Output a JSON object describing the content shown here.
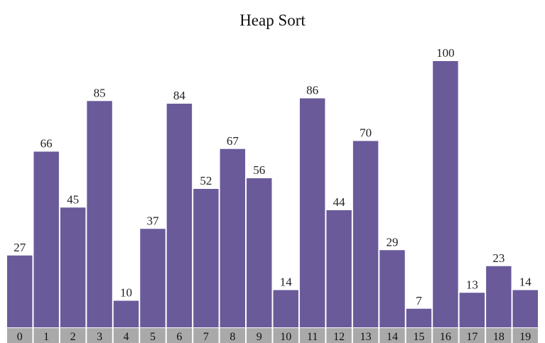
{
  "chart_data": {
    "type": "bar",
    "title": "Heap Sort",
    "categories": [
      "0",
      "1",
      "2",
      "3",
      "4",
      "5",
      "6",
      "7",
      "8",
      "9",
      "10",
      "11",
      "12",
      "13",
      "14",
      "15",
      "16",
      "17",
      "18",
      "19"
    ],
    "values": [
      27,
      66,
      45,
      85,
      10,
      37,
      84,
      52,
      67,
      56,
      14,
      86,
      44,
      70,
      29,
      7,
      100,
      13,
      23,
      14
    ],
    "ylim": [
      0,
      100
    ],
    "grid": false,
    "legend": "none",
    "bar_color": "#6a5a9a",
    "index_cell_color": "#a9a9a9"
  }
}
